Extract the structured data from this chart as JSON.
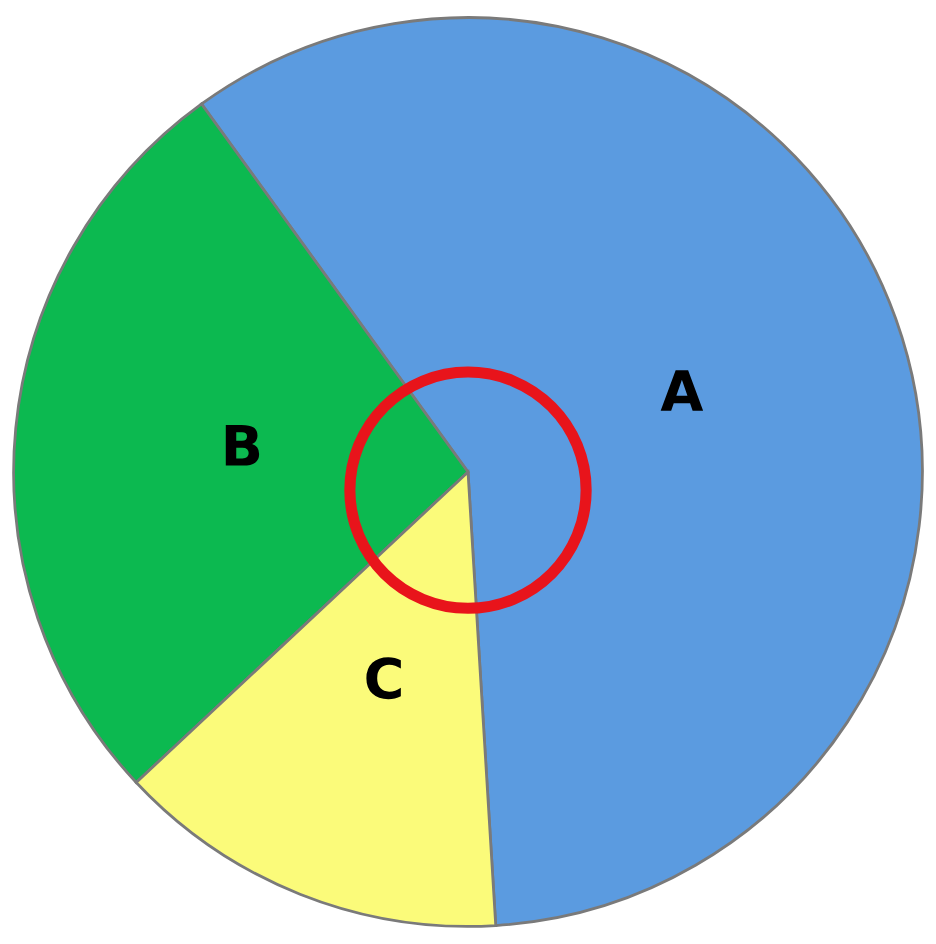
{
  "chart_data": {
    "type": "pie",
    "categories": [
      "A",
      "B",
      "C"
    ],
    "values": [
      59,
      27,
      14
    ],
    "colors": [
      "#5b9be0",
      "#0cb950",
      "#fbfb7a"
    ]
  }
}
